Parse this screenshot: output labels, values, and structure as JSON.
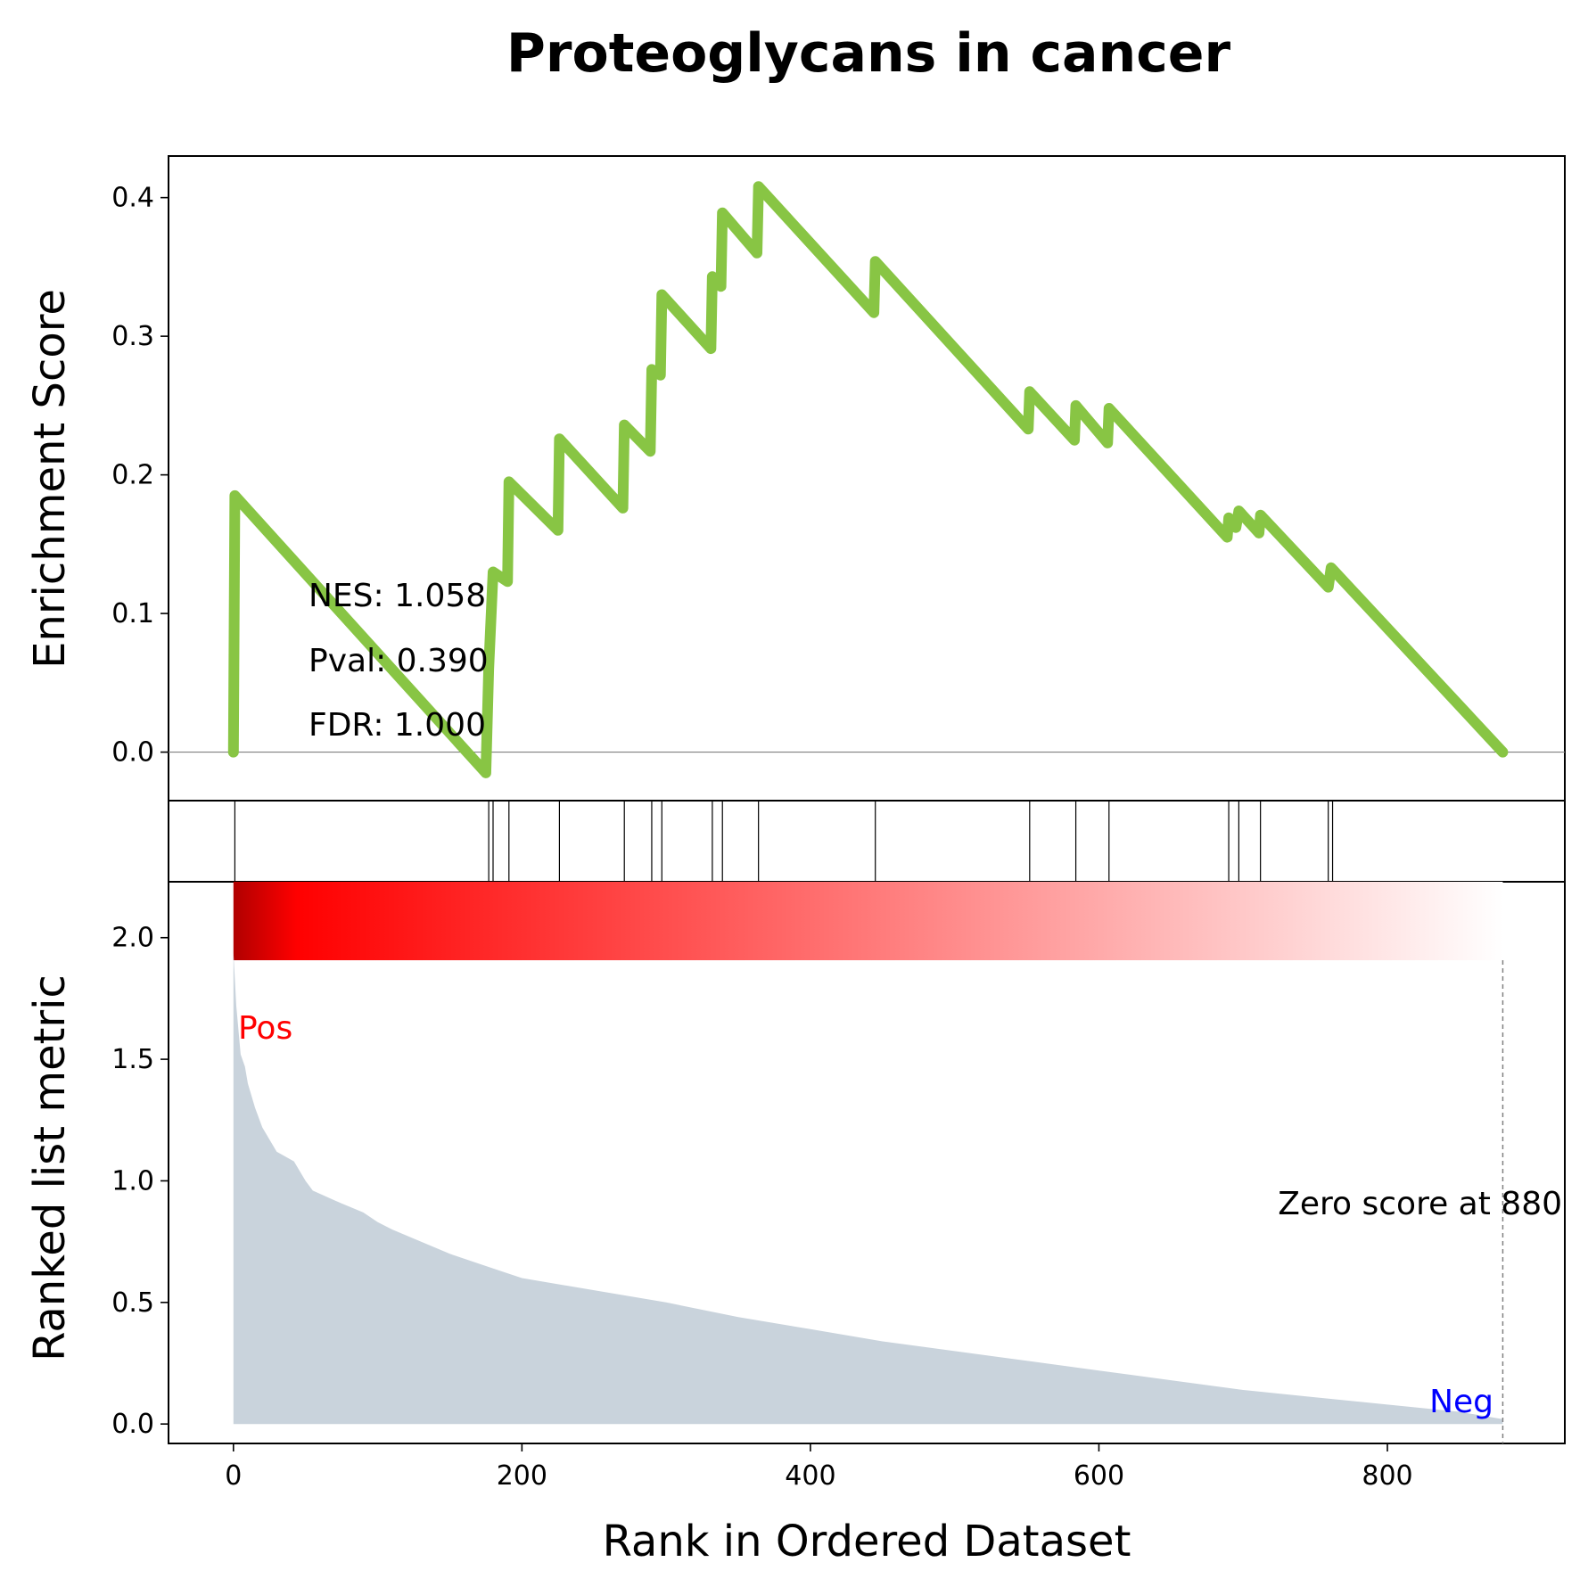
{
  "chart_data": {
    "type": "line",
    "title": "Proteoglycans in cancer",
    "colors": {
      "es_line": "#88c544",
      "hits": "#000000",
      "ranked_fill": "#c9d3dc",
      "pos_label": "#ff0000",
      "neg_label": "#0000ff",
      "gradient_start": "#b00000",
      "gradient_mid": "#ff0000",
      "gradient_end": "#ffffff"
    },
    "es_panel": {
      "ylabel": "Enrichment Score",
      "ylim": [
        -0.035,
        0.43
      ],
      "yticks": [
        0.0,
        0.1,
        0.2,
        0.3,
        0.4
      ],
      "ytick_labels": [
        "0.0",
        "0.1",
        "0.2",
        "0.3",
        "0.4"
      ],
      "zero_line": true,
      "es_points": [
        [
          0,
          0
        ],
        [
          1,
          0.185
        ],
        [
          175,
          -0.015
        ],
        [
          177,
          0.06
        ],
        [
          180,
          0.13
        ],
        [
          190,
          0.123
        ],
        [
          191,
          0.195
        ],
        [
          225,
          0.16
        ],
        [
          226,
          0.226
        ],
        [
          270,
          0.176
        ],
        [
          271,
          0.236
        ],
        [
          289,
          0.217
        ],
        [
          290,
          0.276
        ],
        [
          296,
          0.272
        ],
        [
          297,
          0.33
        ],
        [
          331,
          0.291
        ],
        [
          332,
          0.343
        ],
        [
          338,
          0.336
        ],
        [
          339,
          0.389
        ],
        [
          363,
          0.36
        ],
        [
          364,
          0.408
        ],
        [
          444,
          0.317
        ],
        [
          445,
          0.354
        ],
        [
          551,
          0.233
        ],
        [
          552,
          0.26
        ],
        [
          583,
          0.225
        ],
        [
          584,
          0.25
        ],
        [
          606,
          0.223
        ],
        [
          607,
          0.248
        ],
        [
          689,
          0.155
        ],
        [
          690,
          0.169
        ],
        [
          695,
          0.162
        ],
        [
          697,
          0.174
        ],
        [
          711,
          0.158
        ],
        [
          712,
          0.171
        ],
        [
          759,
          0.119
        ],
        [
          761,
          0.133
        ],
        [
          880,
          0
        ]
      ],
      "annotations": {
        "nes": "NES: 1.058",
        "pval": "Pval: 0.390",
        "fdr": "FDR: 1.000"
      }
    },
    "hits_panel": {
      "hit_positions": [
        1,
        177,
        180,
        191,
        226,
        271,
        290,
        297,
        332,
        339,
        364,
        445,
        552,
        584,
        607,
        690,
        697,
        712,
        759,
        762
      ]
    },
    "ranked_panel": {
      "ylabel": "Ranked list metric",
      "xlabel": "Rank in Ordered Dataset",
      "xlim": [
        -45,
        923
      ],
      "ylim": [
        -0.08,
        2.23
      ],
      "xticks": [
        0,
        200,
        400,
        600,
        800
      ],
      "xtick_labels": [
        "0",
        "200",
        "400",
        "600",
        "800"
      ],
      "yticks": [
        0.0,
        0.5,
        1.0,
        1.5,
        2.0
      ],
      "ytick_labels": [
        "0.0",
        "0.5",
        "1.0",
        "1.5",
        "2.0"
      ],
      "ranked_curve": [
        [
          0,
          1.94
        ],
        [
          2,
          1.72
        ],
        [
          5,
          1.52
        ],
        [
          8,
          1.47
        ],
        [
          10,
          1.4
        ],
        [
          15,
          1.3
        ],
        [
          20,
          1.22
        ],
        [
          30,
          1.12
        ],
        [
          42,
          1.08
        ],
        [
          50,
          1.0
        ],
        [
          55,
          0.96
        ],
        [
          70,
          0.92
        ],
        [
          90,
          0.87
        ],
        [
          100,
          0.83
        ],
        [
          110,
          0.8
        ],
        [
          130,
          0.75
        ],
        [
          150,
          0.7
        ],
        [
          170,
          0.66
        ],
        [
          190,
          0.62
        ],
        [
          200,
          0.6
        ],
        [
          230,
          0.57
        ],
        [
          260,
          0.54
        ],
        [
          300,
          0.5
        ],
        [
          350,
          0.44
        ],
        [
          400,
          0.39
        ],
        [
          450,
          0.34
        ],
        [
          500,
          0.3
        ],
        [
          550,
          0.26
        ],
        [
          600,
          0.22
        ],
        [
          650,
          0.18
        ],
        [
          700,
          0.14
        ],
        [
          750,
          0.11
        ],
        [
          800,
          0.08
        ],
        [
          850,
          0.05
        ],
        [
          870,
          0.03
        ],
        [
          880,
          0.02
        ]
      ],
      "zero_score_label": "Zero score at 880",
      "zero_score_rank": 880,
      "pos_label": "Pos",
      "neg_label": "Neg"
    }
  }
}
